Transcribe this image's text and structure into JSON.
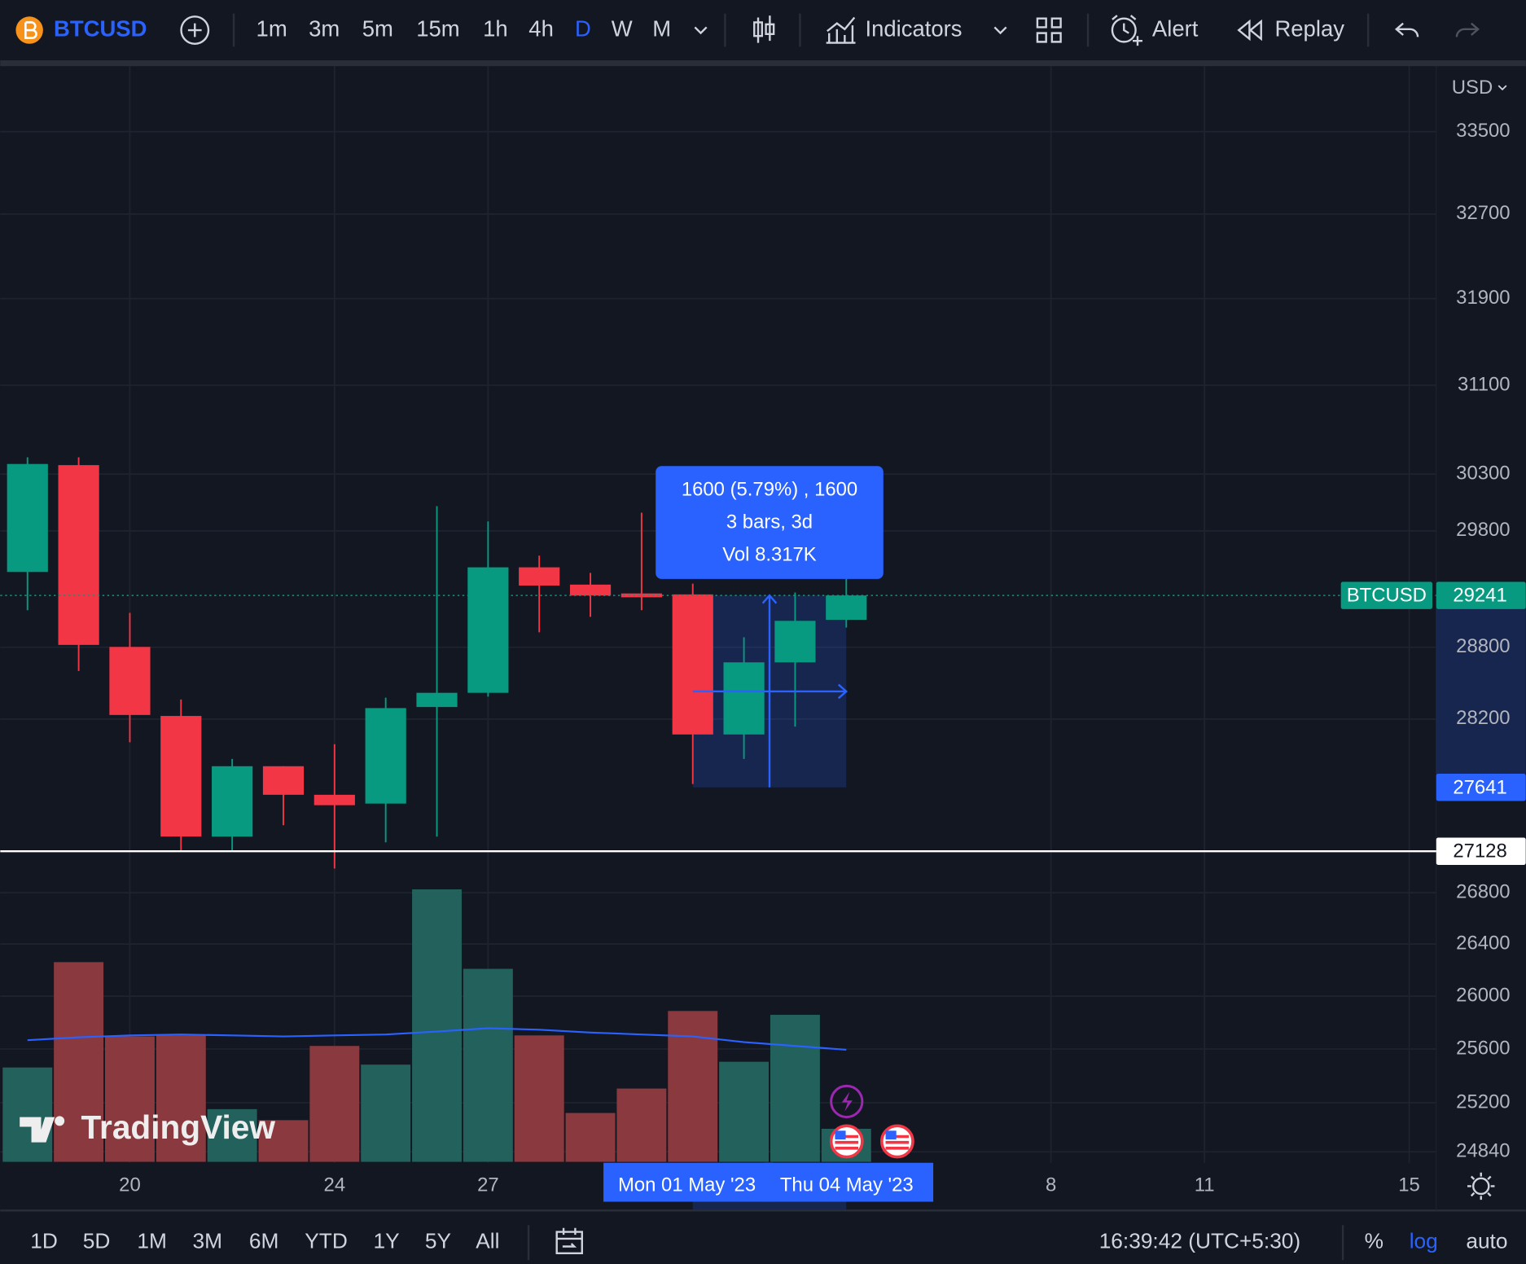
{
  "toolbar": {
    "symbol": "BTCUSD",
    "intervals": [
      "1m",
      "3m",
      "5m",
      "15m",
      "1h",
      "4h",
      "D",
      "W",
      "M"
    ],
    "indicators": "Indicators",
    "alert": "Alert",
    "replay": "Replay"
  },
  "chart_data": {
    "type": "candlestick",
    "currency": "USD",
    "log_scale": true,
    "grid": true,
    "up_color": "#089981",
    "down_color": "#f23645",
    "volume_up_color": "#22615c",
    "volume_down_color": "#8a3a3f",
    "volume_ma_color": "#2962ff",
    "categories": [
      null,
      null,
      "20",
      null,
      null,
      null,
      "24",
      null,
      null,
      "27",
      null,
      null,
      null,
      null,
      null,
      null,
      null,
      null,
      null,
      null,
      "8",
      null,
      null,
      "11",
      null,
      null,
      null,
      "15"
    ],
    "open": [
      29443,
      30380,
      28803,
      28226,
      27245,
      27813,
      27581,
      27510,
      28300,
      28418,
      29483,
      29334,
      29258,
      29250,
      28073,
      28673,
      29033,
      null,
      null,
      null,
      null,
      null,
      null,
      null,
      null,
      null,
      null,
      null
    ],
    "high": [
      30450,
      30450,
      29092,
      28362,
      27872,
      27813,
      27993,
      28378,
      30016,
      29882,
      29584,
      29435,
      29959,
      29342,
      28884,
      29266,
      29383,
      null,
      null,
      null,
      null,
      null,
      null,
      null,
      null,
      null,
      null,
      null
    ],
    "low": [
      29115,
      28600,
      28009,
      27128,
      27128,
      27336,
      26991,
      27199,
      27245,
      28386,
      28927,
      29058,
      29115,
      27668,
      27872,
      28137,
      28967,
      null,
      null,
      null,
      null,
      null,
      null,
      null,
      null,
      null,
      null,
      null
    ],
    "close": [
      30390,
      28820,
      28234,
      27245,
      27813,
      27581,
      27497,
      28291,
      28418,
      29483,
      29326,
      29241,
      29225,
      28073,
      28673,
      29024,
      29241,
      null,
      null,
      null,
      null,
      null,
      null,
      null,
      null,
      null,
      null,
      null
    ],
    "volume": [
      1.97,
      4.17,
      2.62,
      2.64,
      1.1,
      0.87,
      2.42,
      2.03,
      5.69,
      4.03,
      2.64,
      1.02,
      1.53,
      3.15,
      2.09,
      3.07,
      0.69,
      null,
      null,
      null,
      null,
      null,
      null,
      null,
      null,
      null,
      null,
      null
    ],
    "volume_ma": [
      2.54,
      2.6,
      2.64,
      2.66,
      2.64,
      2.62,
      2.64,
      2.66,
      2.72,
      2.79,
      2.76,
      2.7,
      2.66,
      2.62,
      2.5,
      2.42,
      2.34,
      null,
      null,
      null,
      null,
      null,
      null,
      null,
      null,
      null,
      null,
      null
    ],
    "volume_ylim": [
      0,
      14
    ],
    "ylim": [
      24760,
      34130
    ],
    "yticks": [
      33500,
      32700,
      31900,
      31100,
      30300,
      29800,
      28800,
      28200,
      26800,
      26400,
      26000,
      25600,
      25200,
      24840
    ],
    "price_lines": [
      {
        "name": "BTCUSD",
        "value": 29241,
        "color": "#089981",
        "line": "dotted"
      },
      {
        "value": 27641,
        "color": "#2962ff",
        "line": "none"
      },
      {
        "value": 27128,
        "color": "#ffffff",
        "line": "solid"
      }
    ],
    "measure": {
      "lines": [
        "1600 (5.79%) , 1600",
        "3 bars, 3d",
        "Vol 8.317K"
      ],
      "date_labels": [
        "Mon 01 May '23",
        "Thu 04 May '23"
      ]
    }
  },
  "watermark": "TradingView",
  "bottom_bar": {
    "ranges": [
      "1D",
      "5D",
      "1M",
      "3M",
      "6M",
      "YTD",
      "1Y",
      "5Y",
      "All"
    ],
    "time": "16:39:42 (UTC+5:30)",
    "percent": "%",
    "log": "log",
    "auto": "auto"
  }
}
